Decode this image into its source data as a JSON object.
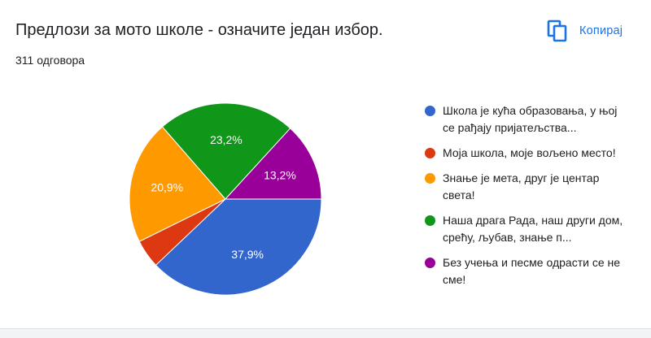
{
  "header": {
    "title": "Предлози за мото школе - означите један избор.",
    "response_count": "311 одговора",
    "copy_label": "Копирај",
    "copy_icon": "copy-icon"
  },
  "colors": {
    "accent": "#1a73e8"
  },
  "chart_data": {
    "type": "pie",
    "title": "",
    "legend_position": "right",
    "slices": [
      {
        "label": "Школа је кућа образовања, у њој се рађају пријатељства...",
        "value": 37.9,
        "value_label": "37,9%",
        "color": "#3366cc"
      },
      {
        "label": "Моја школа, моје вољено место!",
        "value": 4.8,
        "value_label": "",
        "color": "#dc3912"
      },
      {
        "label": "Знање је мета, друг је центар света!",
        "value": 20.9,
        "value_label": "20,9%",
        "color": "#ff9900"
      },
      {
        "label": "Наша драга Рада, наш други дом, срећу, љубав, знање п...",
        "value": 23.2,
        "value_label": "23,2%",
        "color": "#109618"
      },
      {
        "label": "Без учења и песме одрасти се не сме!",
        "value": 13.2,
        "value_label": "13,2%",
        "color": "#990099"
      }
    ]
  }
}
